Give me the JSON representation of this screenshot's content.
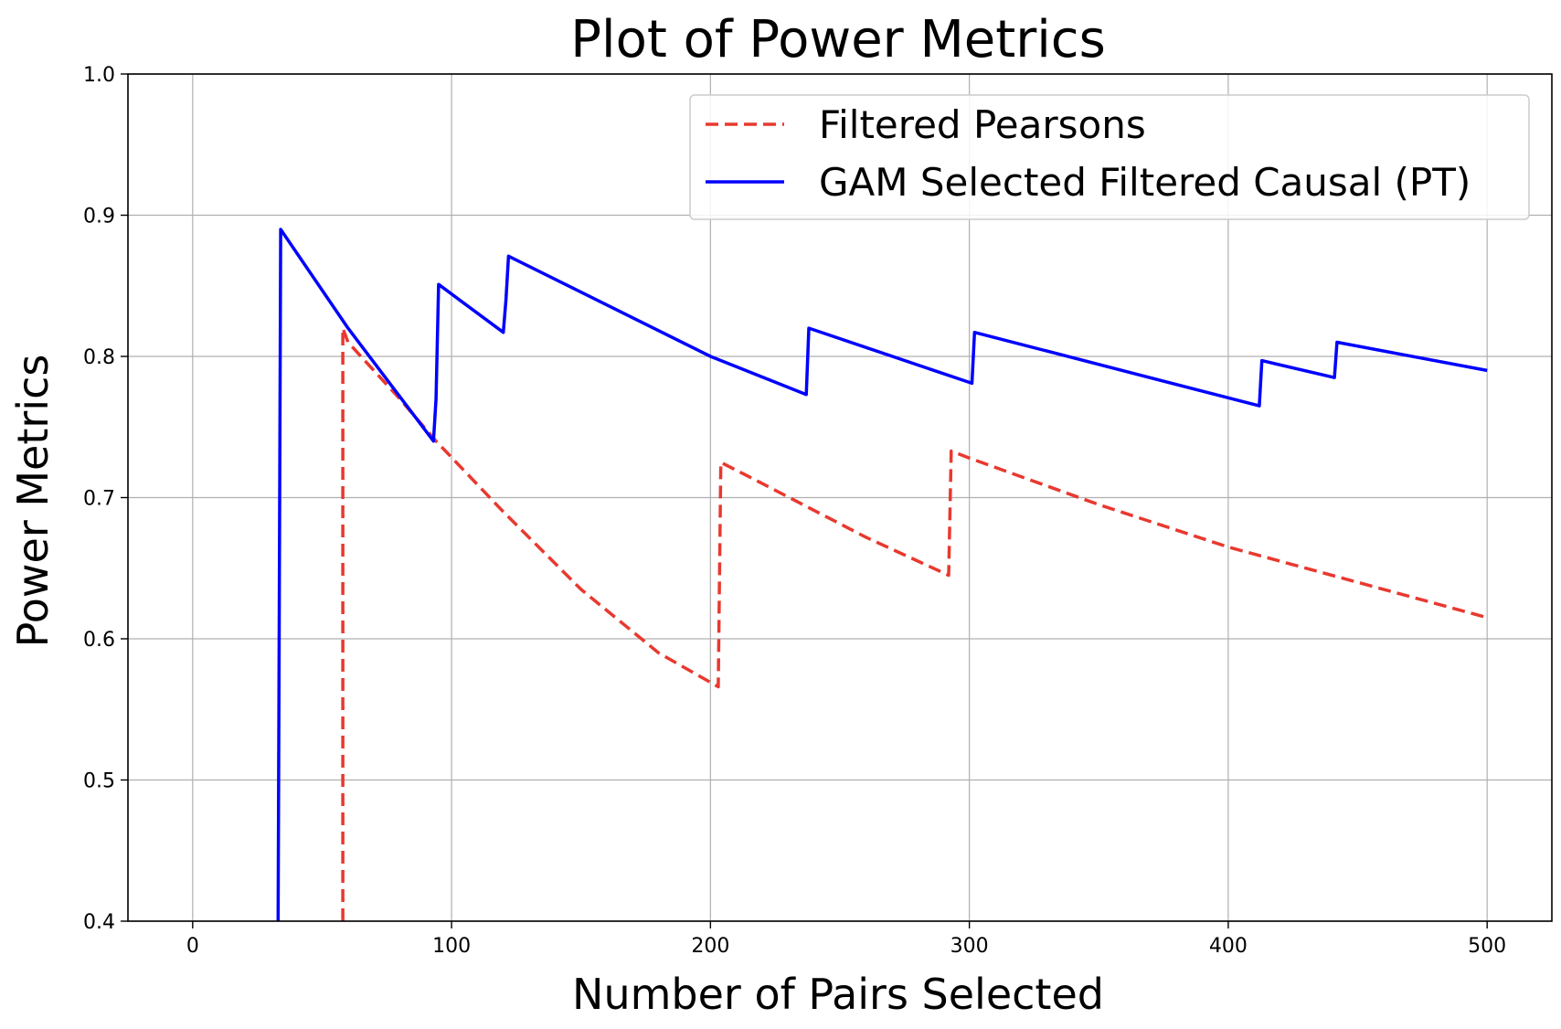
{
  "chart_data": {
    "type": "line",
    "title": "Plot of Power Metrics",
    "xlabel": "Number of Pairs Selected",
    "ylabel": "Power Metrics",
    "xlim": [
      -25,
      525
    ],
    "ylim": [
      0.4,
      1.0
    ],
    "xticks": [
      0,
      100,
      200,
      300,
      400,
      500
    ],
    "yticks": [
      0.4,
      0.5,
      0.6,
      0.7,
      0.8,
      0.9,
      1.0
    ],
    "xtick_labels": [
      "0",
      "100",
      "200",
      "300",
      "400",
      "500"
    ],
    "ytick_labels": [
      "0.4",
      "0.5",
      "0.6",
      "0.7",
      "0.8",
      "0.9",
      "1.0"
    ],
    "grid": true,
    "legend_position": "top-right",
    "series": [
      {
        "name": "Filtered Pearsons",
        "color": "#e8392f",
        "style": "dashed",
        "x": [
          58,
          58,
          60,
          80,
          94,
          120,
          150,
          180,
          203,
          204,
          220,
          260,
          292,
          293,
          300,
          350,
          400,
          450,
          500
        ],
        "y": [
          0.4,
          0.82,
          0.81,
          0.77,
          0.74,
          0.69,
          0.635,
          0.59,
          0.566,
          0.725,
          0.71,
          0.672,
          0.645,
          0.733,
          0.728,
          0.695,
          0.665,
          0.64,
          0.615
        ]
      },
      {
        "name": "GAM Selected Filtered Causal (PT)",
        "color": "#0000ff",
        "style": "solid",
        "x": [
          33,
          34,
          60,
          93,
          94,
          95,
          120,
          121,
          122,
          200,
          237,
          238,
          301,
          302,
          412,
          413,
          441,
          442,
          500
        ],
        "y": [
          0.4,
          0.89,
          0.82,
          0.74,
          0.77,
          0.851,
          0.817,
          0.84,
          0.871,
          0.8,
          0.773,
          0.82,
          0.781,
          0.817,
          0.765,
          0.797,
          0.785,
          0.81,
          0.79
        ]
      }
    ]
  }
}
